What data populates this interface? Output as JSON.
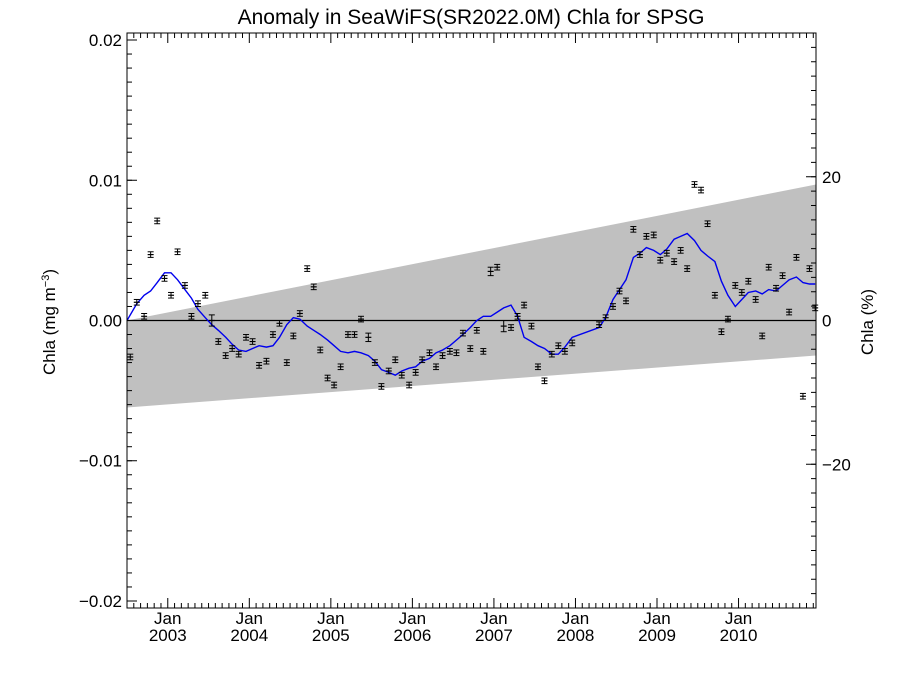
{
  "chart_data": {
    "type": "line",
    "title": "Anomaly in SeaWiFS(SR2022.0M) Chla for SPSG",
    "ylabel_left": "Chla (mg m⁻³)",
    "ylabel_left_prefix": "Chla (mg m",
    "ylabel_left_sup": "−3",
    "ylabel_left_suffix": ")",
    "ylabel_right": "Chla (%)",
    "xlim": [
      2002.5,
      2010.95
    ],
    "ylim": [
      -0.0205,
      0.0205
    ],
    "ylim_right": [
      -40,
      40
    ],
    "y_ticks": [
      -0.02,
      -0.01,
      0.0,
      0.01,
      0.02
    ],
    "y_tick_labels": [
      "−0.02",
      "−0.01",
      "0.00",
      "0.01",
      "0.02"
    ],
    "y_right_ticks": [
      -20,
      0,
      20
    ],
    "y_right_tick_labels": [
      "−20",
      "0",
      "20"
    ],
    "x_ticks": [
      {
        "x": 2003.0,
        "month": "Jan",
        "year": "2003"
      },
      {
        "x": 2004.0,
        "month": "Jan",
        "year": "2004"
      },
      {
        "x": 2005.0,
        "month": "Jan",
        "year": "2005"
      },
      {
        "x": 2006.0,
        "month": "Jan",
        "year": "2006"
      },
      {
        "x": 2007.0,
        "month": "Jan",
        "year": "2007"
      },
      {
        "x": 2008.0,
        "month": "Jan",
        "year": "2008"
      },
      {
        "x": 2009.0,
        "month": "Jan",
        "year": "2009"
      },
      {
        "x": 2010.0,
        "month": "Jan",
        "year": "2010"
      }
    ],
    "trend_band": {
      "x": [
        2002.5,
        2010.95
      ],
      "upper": [
        0.0,
        0.0097
      ],
      "lower": [
        -0.0062,
        -0.0025
      ]
    },
    "zero_line": 0.0,
    "colors": {
      "band": "#c0c0c0",
      "smooth": "#0000ee",
      "points": "#000000"
    },
    "points": {
      "x": [
        2002.54,
        2002.62,
        2002.71,
        2002.79,
        2002.87,
        2002.96,
        2003.04,
        2003.12,
        2003.21,
        2003.29,
        2003.37,
        2003.46,
        2003.54,
        2003.62,
        2003.71,
        2003.79,
        2003.87,
        2003.96,
        2004.04,
        2004.12,
        2004.21,
        2004.29,
        2004.37,
        2004.46,
        2004.54,
        2004.62,
        2004.71,
        2004.79,
        2004.87,
        2004.96,
        2005.04,
        2005.12,
        2005.21,
        2005.29,
        2005.37,
        2005.46,
        2005.54,
        2005.62,
        2005.71,
        2005.79,
        2005.87,
        2005.96,
        2006.04,
        2006.12,
        2006.21,
        2006.29,
        2006.37,
        2006.46,
        2006.54,
        2006.62,
        2006.71,
        2006.79,
        2006.87,
        2006.96,
        2007.04,
        2007.12,
        2007.21,
        2007.29,
        2007.37,
        2007.46,
        2007.54,
        2007.62,
        2007.71,
        2007.79,
        2007.87,
        2007.96,
        2008.29,
        2008.37,
        2008.46,
        2008.54,
        2008.62,
        2008.71,
        2008.79,
        2008.87,
        2008.96,
        2009.04,
        2009.12,
        2009.21,
        2009.29,
        2009.37,
        2009.46,
        2009.54,
        2009.62,
        2009.71,
        2009.79,
        2009.87,
        2009.96,
        2010.04,
        2010.12,
        2010.21,
        2010.29,
        2010.37,
        2010.46,
        2010.54,
        2010.62,
        2010.71,
        2010.79,
        2010.87,
        2010.94
      ],
      "y": [
        -0.0026,
        0.0013,
        0.0003,
        0.0047,
        0.0071,
        0.003,
        0.0018,
        0.0049,
        0.0025,
        0.0003,
        0.0012,
        0.0018,
        0.0,
        -0.0015,
        -0.0025,
        -0.002,
        -0.0024,
        -0.0012,
        -0.0015,
        -0.0032,
        -0.0029,
        -0.001,
        -0.0002,
        -0.003,
        -0.0011,
        0.0005,
        0.0037,
        0.0024,
        -0.0021,
        -0.0041,
        -0.0046,
        -0.0033,
        -0.001,
        -0.001,
        0.0001,
        -0.0012,
        -0.003,
        -0.0047,
        -0.0036,
        -0.0028,
        -0.0039,
        -0.0046,
        -0.0037,
        -0.0028,
        -0.0023,
        -0.0033,
        -0.0025,
        -0.0022,
        -0.0023,
        -0.0009,
        -0.002,
        -0.0007,
        -0.0022,
        0.0035,
        0.0038,
        -0.0004,
        -0.0005,
        0.0003,
        0.0011,
        -0.0004,
        -0.0033,
        -0.0043,
        -0.0024,
        -0.0018,
        -0.0022,
        -0.0016,
        -0.0003,
        0.0002,
        0.001,
        0.0021,
        0.0014,
        0.0065,
        0.0047,
        0.006,
        0.0061,
        0.0043,
        0.0048,
        0.0042,
        0.005,
        0.0037,
        0.0097,
        0.0093,
        0.0069,
        0.0018,
        -0.0008,
        0.0001,
        0.0025,
        0.002,
        0.0028,
        0.0015,
        -0.0011,
        0.0038,
        0.0023,
        0.0032,
        0.0006,
        0.0045,
        -0.0054,
        0.0037,
        0.0009
      ],
      "err": [
        0.0002,
        0.0002,
        0.0002,
        0.0002,
        0.0002,
        0.0002,
        0.0002,
        0.0002,
        0.0002,
        0.0002,
        0.0002,
        0.0002,
        0.0004,
        0.0002,
        0.0002,
        0.0002,
        0.0002,
        0.0002,
        0.0002,
        0.0002,
        0.0002,
        0.0002,
        0.0002,
        0.0002,
        0.0002,
        0.0002,
        0.0002,
        0.0002,
        0.0002,
        0.0002,
        0.0002,
        0.0002,
        0.0002,
        0.0002,
        0.0002,
        0.0003,
        0.0002,
        0.0002,
        0.0002,
        0.0002,
        0.0002,
        0.0002,
        0.0002,
        0.0002,
        0.0002,
        0.0002,
        0.0002,
        0.0002,
        0.0002,
        0.0002,
        0.0002,
        0.0002,
        0.0002,
        0.0003,
        0.0002,
        0.0004,
        0.0002,
        0.0002,
        0.0002,
        0.0002,
        0.0002,
        0.0002,
        0.0002,
        0.0002,
        0.0002,
        0.0002,
        0.0002,
        0.0002,
        0.0002,
        0.0002,
        0.0002,
        0.0002,
        0.0002,
        0.0002,
        0.0002,
        0.0002,
        0.0002,
        0.0002,
        0.0002,
        0.0002,
        0.0002,
        0.0002,
        0.0002,
        0.0002,
        0.0002,
        0.0002,
        0.0002,
        0.0002,
        0.0002,
        0.0002,
        0.0002,
        0.0002,
        0.0002,
        0.0002,
        0.0002,
        0.0002,
        0.0002,
        0.0002,
        0.0002
      ]
    },
    "smooth_line": {
      "x": [
        2002.5,
        2002.62,
        2002.71,
        2002.79,
        2002.87,
        2002.96,
        2003.04,
        2003.12,
        2003.21,
        2003.29,
        2003.37,
        2003.46,
        2003.54,
        2003.62,
        2003.71,
        2003.79,
        2003.87,
        2003.96,
        2004.04,
        2004.12,
        2004.21,
        2004.29,
        2004.37,
        2004.46,
        2004.54,
        2004.62,
        2004.71,
        2004.79,
        2004.87,
        2004.96,
        2005.04,
        2005.12,
        2005.21,
        2005.29,
        2005.37,
        2005.46,
        2005.54,
        2005.62,
        2005.71,
        2005.79,
        2005.87,
        2005.96,
        2006.04,
        2006.12,
        2006.21,
        2006.29,
        2006.37,
        2006.46,
        2006.54,
        2006.62,
        2006.71,
        2006.79,
        2006.87,
        2006.96,
        2007.04,
        2007.12,
        2007.21,
        2007.29,
        2007.37,
        2007.46,
        2007.54,
        2007.62,
        2007.71,
        2007.79,
        2007.87,
        2007.96,
        2008.29,
        2008.37,
        2008.46,
        2008.54,
        2008.62,
        2008.71,
        2008.79,
        2008.87,
        2008.96,
        2009.04,
        2009.12,
        2009.21,
        2009.29,
        2009.37,
        2009.46,
        2009.54,
        2009.62,
        2009.71,
        2009.79,
        2009.87,
        2009.96,
        2010.04,
        2010.12,
        2010.21,
        2010.29,
        2010.37,
        2010.46,
        2010.54,
        2010.62,
        2010.71,
        2010.79,
        2010.87,
        2010.94
      ],
      "y": [
        0.0,
        0.0012,
        0.0018,
        0.0021,
        0.0027,
        0.0034,
        0.0034,
        0.0029,
        0.0022,
        0.0016,
        0.0008,
        0.0002,
        -0.0003,
        -0.0007,
        -0.0012,
        -0.0017,
        -0.0021,
        -0.0022,
        -0.002,
        -0.0018,
        -0.0019,
        -0.0018,
        -0.0012,
        -0.0003,
        0.0002,
        0.0001,
        -0.0004,
        -0.0007,
        -0.001,
        -0.0014,
        -0.0018,
        -0.0022,
        -0.0023,
        -0.0022,
        -0.0023,
        -0.0025,
        -0.0029,
        -0.0035,
        -0.0037,
        -0.0039,
        -0.0036,
        -0.0034,
        -0.0033,
        -0.0029,
        -0.0027,
        -0.0023,
        -0.0021,
        -0.0018,
        -0.0014,
        -0.001,
        -0.0005,
        0.0,
        0.0003,
        0.0003,
        0.0006,
        0.0009,
        0.0011,
        0.0003,
        -0.0012,
        -0.0015,
        -0.0018,
        -0.002,
        -0.0024,
        -0.0024,
        -0.0019,
        -0.0012,
        -0.0005,
        0.0002,
        0.0015,
        0.0022,
        0.0029,
        0.0045,
        0.0048,
        0.0052,
        0.005,
        0.0047,
        0.0051,
        0.0058,
        0.006,
        0.0062,
        0.0057,
        0.005,
        0.0046,
        0.0042,
        0.0028,
        0.0018,
        0.001,
        0.0015,
        0.002,
        0.0021,
        0.0019,
        0.0022,
        0.0021,
        0.0025,
        0.0029,
        0.0031,
        0.0027,
        0.0026,
        0.0026
      ]
    }
  }
}
